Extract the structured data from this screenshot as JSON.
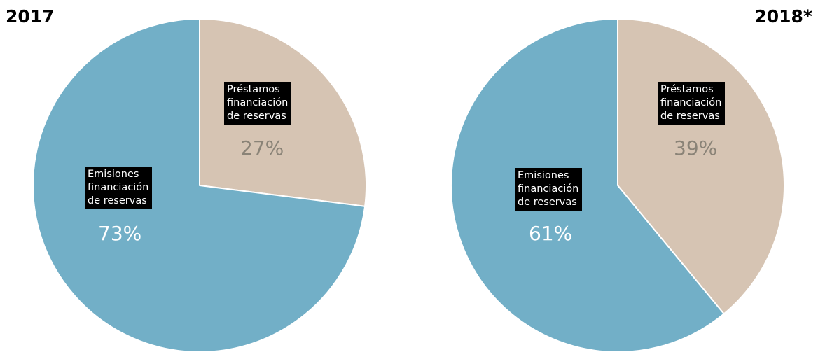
{
  "colors": {
    "emisiones": "#72afc7",
    "prestamos": "#d6c4b3",
    "prestamos_pct_text": "#8a8377",
    "emisiones_pct_text": "#ffffff",
    "label_bg": "#000000"
  },
  "chart_data": [
    {
      "type": "pie",
      "title": "2017",
      "slices": [
        {
          "label_lines": [
            "Préstamos",
            "financiación",
            "de reservas"
          ],
          "value": 27,
          "value_label": "27%",
          "color": "#d6c4b3"
        },
        {
          "label_lines": [
            "Emisiones",
            "financiación",
            "de reservas"
          ],
          "value": 73,
          "value_label": "73%",
          "color": "#72afc7"
        }
      ],
      "start_angle_deg": 0,
      "direction": "clockwise"
    },
    {
      "type": "pie",
      "title": "2018*",
      "slices": [
        {
          "label_lines": [
            "Préstamos",
            "financiación",
            "de reservas"
          ],
          "value": 39,
          "value_label": "39%",
          "color": "#d6c4b3"
        },
        {
          "label_lines": [
            "Emisiones",
            "financiación",
            "de reservas"
          ],
          "value": 61,
          "value_label": "61%",
          "color": "#72afc7"
        }
      ],
      "start_angle_deg": 0,
      "direction": "clockwise"
    }
  ]
}
